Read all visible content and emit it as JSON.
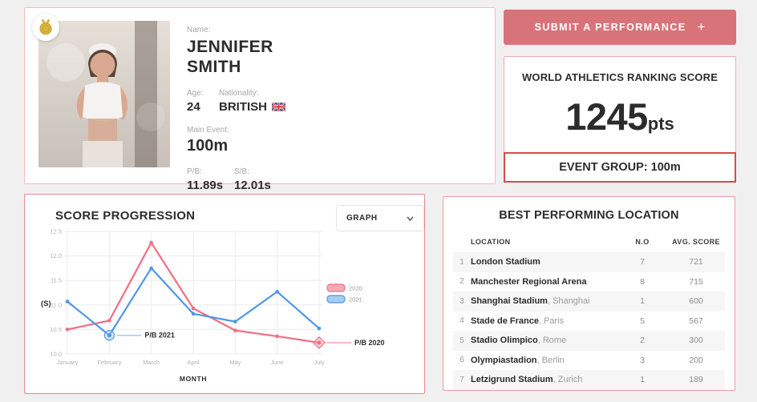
{
  "colors": {
    "accent": "#d9737a",
    "alert_red": "#d84b4b"
  },
  "profile": {
    "name_label": "Name:",
    "first_name": "JENNIFER",
    "last_name": "SMITH",
    "age_label": "Age:",
    "age": "24",
    "nationality_label": "Nationality:",
    "nationality": "BRITISH",
    "flag_icon": "union-jack",
    "badge_icon": "gold-medal",
    "main_event_label": "Main Event:",
    "main_event": "100m",
    "pb_label": "P/B:",
    "pb": "11.89s",
    "sb_label": "S/B:",
    "sb": "12.01s"
  },
  "actions": {
    "submit_label": "SUBMIT A PERFORMANCE",
    "submit_plus": "+"
  },
  "ranking": {
    "title": "WORLD ATHLETICS RANKING SCORE",
    "score": "1245",
    "score_unit": "pts",
    "event_group": "EVENT GROUP: 100m"
  },
  "score_progression": {
    "title": "SCORE PROGRESSION",
    "view_selector": "GRAPH"
  },
  "chart_data": {
    "type": "line",
    "title": "SCORE PROGRESSION",
    "xlabel": "MONTH",
    "ylabel": "(S)",
    "ylim": [
      10.0,
      12.5
    ],
    "yticks": [
      "10.0",
      "10.5",
      "11.0",
      "11.5",
      "12.0",
      "12.5"
    ],
    "grid": true,
    "legend_position": "right",
    "categories": [
      "January",
      "February",
      "March",
      "April",
      "May",
      "June",
      "July"
    ],
    "series": [
      {
        "name": "2020",
        "color": "#f26d83",
        "fill": "#f6aab8",
        "values": [
          10.5,
          10.68,
          12.27,
          10.93,
          10.48,
          10.36,
          10.23
        ]
      },
      {
        "name": "2021",
        "color": "#4f96e8",
        "fill": "#a9cbf2",
        "values": [
          11.07,
          10.38,
          11.75,
          10.82,
          10.66,
          11.27,
          10.52
        ]
      }
    ],
    "annotations": [
      {
        "label": "P/B 2021",
        "series": 1,
        "index": 1,
        "marker": "circle"
      },
      {
        "label": "P/B 2020",
        "series": 0,
        "index": 6,
        "marker": "diamond"
      }
    ]
  },
  "locations": {
    "title": "BEST PERFORMING LOCATION",
    "columns": [
      "LOCATION",
      "N.O",
      "AVG. SCORE"
    ],
    "rows": [
      {
        "rank": "1",
        "name": "London Stadium",
        "city": "",
        "no": "7",
        "avg": "721"
      },
      {
        "rank": "2",
        "name": "Manchester Regional Arena",
        "city": "",
        "no": "8",
        "avg": "715"
      },
      {
        "rank": "3",
        "name": "Shanghai Stadium",
        "city": "Shanghai",
        "no": "1",
        "avg": "600"
      },
      {
        "rank": "4",
        "name": "Stade de France",
        "city": "Paris",
        "no": "5",
        "avg": "567"
      },
      {
        "rank": "5",
        "name": "Stadio Olimpico",
        "city": "Rome",
        "no": "2",
        "avg": "300"
      },
      {
        "rank": "6",
        "name": "Olympiastadion",
        "city": "Berlin",
        "no": "3",
        "avg": "200"
      },
      {
        "rank": "7",
        "name": "Letzigrund Stadium",
        "city": "Zurich",
        "no": "1",
        "avg": "189"
      }
    ]
  }
}
